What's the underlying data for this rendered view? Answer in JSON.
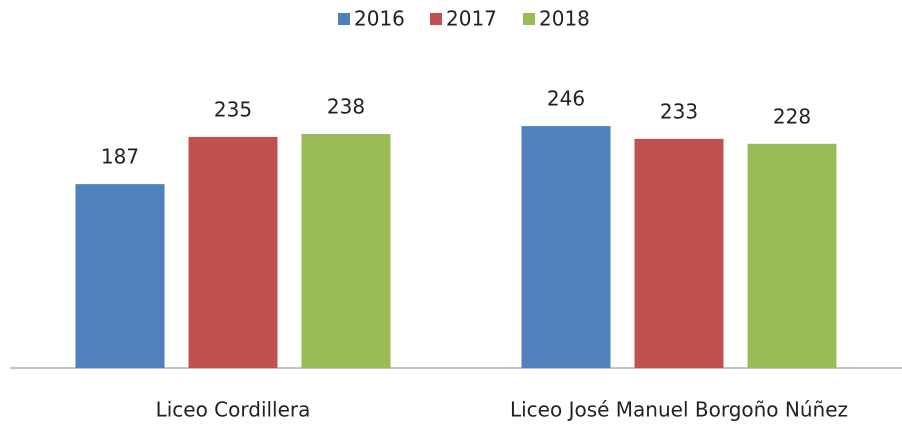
{
  "chart_data": {
    "type": "bar",
    "categories": [
      "Liceo Cordillera",
      "Liceo José Manuel Borgoño Núñez"
    ],
    "series": [
      {
        "name": "2016",
        "color": "#4f81bd",
        "values": [
          187,
          246
        ]
      },
      {
        "name": "2017",
        "color": "#c0504d",
        "values": [
          235,
          233
        ]
      },
      {
        "name": "2018",
        "color": "#9bbb59",
        "values": [
          238,
          228
        ]
      }
    ],
    "ylim": [
      0,
      300
    ]
  }
}
